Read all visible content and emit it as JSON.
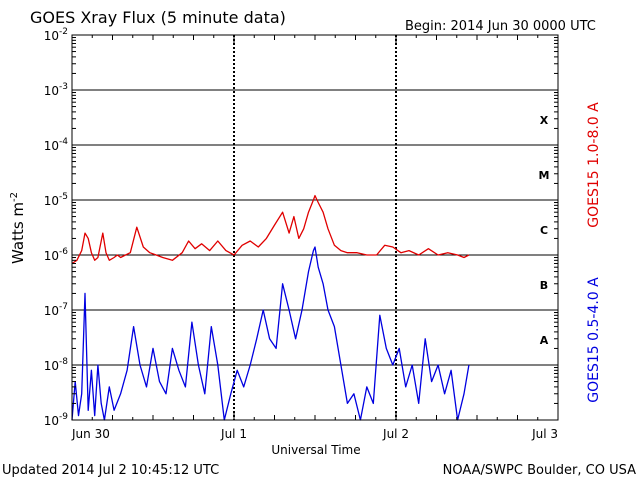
{
  "chart_data": {
    "type": "line",
    "title": "GOES Xray Flux (5 minute data)",
    "begin_label": "Begin:  2014 Jun 30 0000 UTC",
    "xlabel": "Universal Time",
    "ylabel_main": "Watts m",
    "ylabel_exp": "-2",
    "y_scale": "log",
    "ylim": [
      1e-09,
      0.01
    ],
    "y_ticks": [
      {
        "base": "10",
        "exp": "-9",
        "value": 1e-09
      },
      {
        "base": "10",
        "exp": "-8",
        "value": 1e-08
      },
      {
        "base": "10",
        "exp": "-7",
        "value": 1e-07
      },
      {
        "base": "10",
        "exp": "-6",
        "value": 1e-06
      },
      {
        "base": "10",
        "exp": "-5",
        "value": 1e-05
      },
      {
        "base": "10",
        "exp": "-4",
        "value": 0.0001
      },
      {
        "base": "10",
        "exp": "-3",
        "value": 0.001
      },
      {
        "base": "10",
        "exp": "-2",
        "value": 0.01
      }
    ],
    "x_unit": "days since 2014 Jun 30 0000 UTC",
    "xlim": [
      0,
      3
    ],
    "x_ticks": [
      {
        "label": "Jun 30",
        "value": 0
      },
      {
        "label": "Jul 1",
        "value": 1
      },
      {
        "label": "Jul 2",
        "value": 2
      },
      {
        "label": "Jul 3",
        "value": 3
      }
    ],
    "flare_classes": [
      {
        "label": "A",
        "value": 3e-08
      },
      {
        "label": "B",
        "value": 3e-07
      },
      {
        "label": "C",
        "value": 3e-06
      },
      {
        "label": "M",
        "value": 3e-05
      },
      {
        "label": "X",
        "value": 0.0003
      }
    ],
    "grid": "horizontal lines at each decade, dotted verticals at day boundaries",
    "series": [
      {
        "name": "GOES15 1.0-8.0 A",
        "color": "#e00000",
        "x": [
          0.0,
          0.03,
          0.06,
          0.08,
          0.1,
          0.12,
          0.14,
          0.16,
          0.19,
          0.21,
          0.23,
          0.26,
          0.28,
          0.3,
          0.33,
          0.36,
          0.4,
          0.44,
          0.48,
          0.52,
          0.56,
          0.62,
          0.68,
          0.72,
          0.76,
          0.8,
          0.85,
          0.9,
          0.95,
          1.0,
          1.05,
          1.1,
          1.15,
          1.2,
          1.25,
          1.3,
          1.34,
          1.37,
          1.4,
          1.43,
          1.46,
          1.49,
          1.5,
          1.52,
          1.55,
          1.58,
          1.62,
          1.66,
          1.7,
          1.76,
          1.82,
          1.88,
          1.93,
          1.98,
          2.03,
          2.08,
          2.14,
          2.2,
          2.26,
          2.32,
          2.38,
          2.42,
          2.45
        ],
        "y": [
          7e-07,
          8e-07,
          1.2e-06,
          2.5e-06,
          2e-06,
          1.1e-06,
          8e-07,
          9e-07,
          2.5e-06,
          1.1e-06,
          8e-07,
          9e-07,
          1e-06,
          9e-07,
          1e-06,
          1.1e-06,
          3.2e-06,
          1.4e-06,
          1.1e-06,
          1e-06,
          9e-07,
          8e-07,
          1.1e-06,
          1.8e-06,
          1.3e-06,
          1.6e-06,
          1.2e-06,
          1.8e-06,
          1.2e-06,
          1e-06,
          1.5e-06,
          1.8e-06,
          1.4e-06,
          2e-06,
          3.5e-06,
          6e-06,
          2.5e-06,
          5e-06,
          2e-06,
          3e-06,
          6e-06,
          1e-05,
          1.2e-05,
          9e-06,
          6e-06,
          3e-06,
          1.5e-06,
          1.2e-06,
          1.1e-06,
          1.1e-06,
          1e-06,
          1e-06,
          1.5e-06,
          1.4e-06,
          1.1e-06,
          1.2e-06,
          1e-06,
          1.3e-06,
          1e-06,
          1.1e-06,
          1e-06,
          9e-07,
          1e-06
        ]
      },
      {
        "name": "GOES15 0.5-4.0 A",
        "color": "#0000e0",
        "x": [
          0.0,
          0.02,
          0.04,
          0.06,
          0.08,
          0.1,
          0.12,
          0.14,
          0.16,
          0.18,
          0.2,
          0.23,
          0.26,
          0.3,
          0.34,
          0.38,
          0.42,
          0.46,
          0.5,
          0.54,
          0.58,
          0.62,
          0.66,
          0.7,
          0.74,
          0.78,
          0.82,
          0.86,
          0.9,
          0.94,
          0.98,
          1.02,
          1.06,
          1.1,
          1.14,
          1.18,
          1.22,
          1.26,
          1.3,
          1.34,
          1.38,
          1.42,
          1.46,
          1.49,
          1.5,
          1.52,
          1.55,
          1.58,
          1.62,
          1.66,
          1.7,
          1.74,
          1.78,
          1.82,
          1.86,
          1.9,
          1.94,
          1.98,
          2.02,
          2.06,
          2.1,
          2.14,
          2.18,
          2.22,
          2.26,
          2.3,
          2.34,
          2.38,
          2.42,
          2.45
        ],
        "y": [
          1e-09,
          5e-09,
          1.2e-09,
          3e-09,
          2e-07,
          1.5e-09,
          8e-09,
          1.2e-09,
          1e-08,
          2e-09,
          1e-09,
          4e-09,
          1.5e-09,
          3e-09,
          8e-09,
          5e-08,
          1e-08,
          4e-09,
          2e-08,
          5e-09,
          3e-09,
          2e-08,
          8e-09,
          4e-09,
          6e-08,
          1e-08,
          3e-09,
          5e-08,
          1e-08,
          1e-09,
          3e-09,
          8e-09,
          4e-09,
          1e-08,
          3e-08,
          1e-07,
          3e-08,
          2e-08,
          3e-07,
          1e-07,
          3e-08,
          1e-07,
          5e-07,
          1.2e-06,
          1.4e-06,
          6e-07,
          3e-07,
          1e-07,
          5e-08,
          1e-08,
          2e-09,
          3e-09,
          1e-09,
          4e-09,
          2e-09,
          8e-08,
          2e-08,
          1e-08,
          2e-08,
          4e-09,
          1e-08,
          2e-09,
          3e-08,
          5e-09,
          1e-08,
          3e-09,
          8e-09,
          1e-09,
          3e-09,
          1e-08
        ]
      }
    ]
  },
  "footer": {
    "updated": "Updated 2014 Jul  2 10:45:12 UTC",
    "credit": "NOAA/SWPC Boulder, CO USA"
  }
}
